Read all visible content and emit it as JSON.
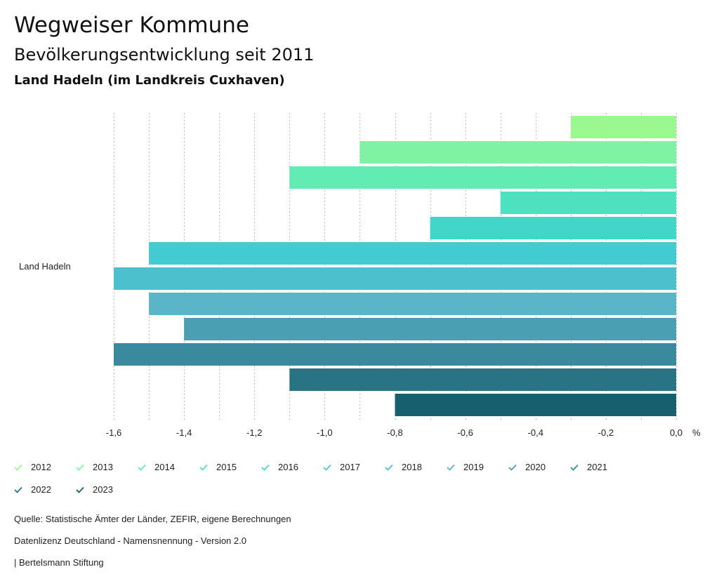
{
  "header": {
    "title": "Wegweiser Kommune",
    "subtitle": "Bevölkerungsentwicklung seit 2011",
    "region": "Land Hadeln (im Landkreis Cuxhaven)"
  },
  "chart_data": {
    "type": "bar",
    "orientation": "horizontal",
    "categories": [
      "Land Hadeln"
    ],
    "xlabel": "%",
    "xlim": [
      -1.6,
      0.0
    ],
    "x_ticks": [
      "-1,6",
      "-1,4",
      "-1,2",
      "-1,0",
      "-0,8",
      "-0,6",
      "-0,4",
      "-0,2",
      "0,0"
    ],
    "x_tick_values": [
      -1.6,
      -1.4,
      -1.2,
      -1.0,
      -0.8,
      -0.6,
      -0.4,
      -0.2,
      0.0
    ],
    "grid": true,
    "series": [
      {
        "name": "2012",
        "values": [
          -0.3
        ],
        "color": "#9bf78f"
      },
      {
        "name": "2013",
        "values": [
          -0.9
        ],
        "color": "#7ff2a3"
      },
      {
        "name": "2014",
        "values": [
          -1.1
        ],
        "color": "#62ebb2"
      },
      {
        "name": "2015",
        "values": [
          -0.5
        ],
        "color": "#4de1c0"
      },
      {
        "name": "2016",
        "values": [
          -0.7
        ],
        "color": "#42d6c9"
      },
      {
        "name": "2017",
        "values": [
          -1.5
        ],
        "color": "#42cbd0"
      },
      {
        "name": "2018",
        "values": [
          -1.6
        ],
        "color": "#4dc0cd"
      },
      {
        "name": "2019",
        "values": [
          -1.5
        ],
        "color": "#5bb5c8"
      },
      {
        "name": "2020",
        "values": [
          -1.4
        ],
        "color": "#4b9fb3"
      },
      {
        "name": "2021",
        "values": [
          -1.6
        ],
        "color": "#3a899c"
      },
      {
        "name": "2022",
        "values": [
          -1.1
        ],
        "color": "#287485"
      },
      {
        "name": "2023",
        "values": [
          -0.8
        ],
        "color": "#175e6e"
      }
    ]
  },
  "footer": {
    "source": "Quelle: Statistische Ämter der Länder, ZEFIR, eigene Berechnungen",
    "license": "Datenlizenz Deutschland - Namensnennung - Version 2.0",
    "brand": "| Bertelsmann Stiftung"
  }
}
